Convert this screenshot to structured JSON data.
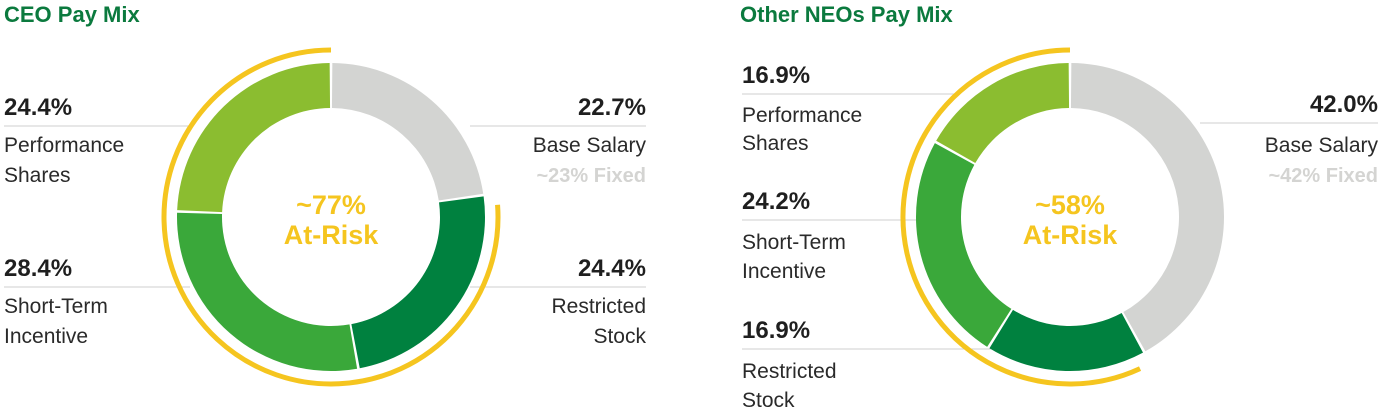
{
  "colors": {
    "title": "#0b7a3e",
    "performance_shares": "#8bbd30",
    "short_term_incentive": "#3aa83a",
    "restricted_stock": "#00813f",
    "base_salary": "#d3d4d2",
    "at_risk_arc": "#f5c51f",
    "fixed_text": "#d4d4d2"
  },
  "chart_data": [
    {
      "type": "pie",
      "subtype": "donut",
      "title": "CEO Pay Mix",
      "center_label": [
        "~77%",
        "At-Risk"
      ],
      "at_risk_bracket": "Performance Shares, Short-Term Incentive, Restricted Stock",
      "slices": [
        {
          "pct_label": "22.7%",
          "label": [
            "Base Salary"
          ],
          "sub_label": "~23% Fixed",
          "value": 22.7,
          "color": "#d3d4d2"
        },
        {
          "pct_label": "24.4%",
          "label": [
            "Restricted",
            "Stock"
          ],
          "value": 24.4,
          "color": "#00813f"
        },
        {
          "pct_label": "28.4%",
          "label": [
            "Short-Term",
            "Incentive"
          ],
          "value": 28.4,
          "color": "#3aa83a"
        },
        {
          "pct_label": "24.4%",
          "label": [
            "Performance",
            "Shares"
          ],
          "value": 24.4,
          "color": "#8bbd30"
        }
      ]
    },
    {
      "type": "pie",
      "subtype": "donut",
      "title": "Other NEOs Pay Mix",
      "center_label": [
        "~58%",
        "At-Risk"
      ],
      "at_risk_bracket": "Performance Shares, Short-Term Incentive, Restricted Stock",
      "slices": [
        {
          "pct_label": "42.0%",
          "label": [
            "Base Salary"
          ],
          "sub_label": "~42% Fixed",
          "value": 42.0,
          "color": "#d3d4d2"
        },
        {
          "pct_label": "16.9%",
          "label": [
            "Restricted",
            "Stock"
          ],
          "value": 16.9,
          "color": "#00813f"
        },
        {
          "pct_label": "24.2%",
          "label": [
            "Short-Term",
            "Incentive"
          ],
          "value": 24.2,
          "color": "#3aa83a"
        },
        {
          "pct_label": "16.9%",
          "label": [
            "Performance",
            "Shares"
          ],
          "value": 16.9,
          "color": "#8bbd30"
        }
      ]
    }
  ]
}
